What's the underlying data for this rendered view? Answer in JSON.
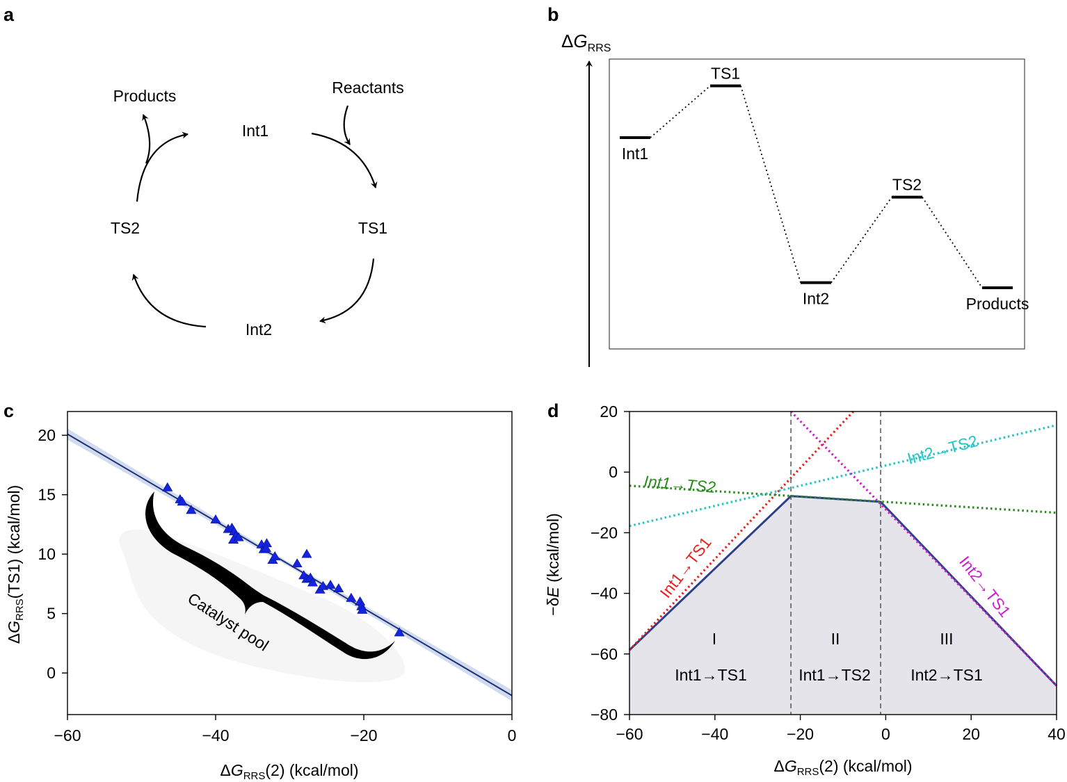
{
  "panels": {
    "a": {
      "label": "a",
      "nodes": {
        "int1": "Int1",
        "ts1": "TS1",
        "int2": "Int2",
        "ts2": "TS2",
        "reactants": "Reactants",
        "products": "Products"
      }
    },
    "b": {
      "label": "b",
      "axis": {
        "main": "ΔG",
        "italic_letter": "G",
        "sub": "RRS"
      },
      "levels": [
        {
          "name": "Int1",
          "value": 0.0
        },
        {
          "name": "TS1",
          "value": 1.0
        },
        {
          "name": "Int2",
          "value": -2.8
        },
        {
          "name": "TS2",
          "value": -1.15
        },
        {
          "name": "Products",
          "value": -2.9
        }
      ]
    },
    "c": {
      "label": "c",
      "annotation": "Catalyst pool"
    },
    "d": {
      "label": "d",
      "series_labels": {
        "int1_ts1": "Int1→TS1",
        "int1_ts2": "Int1→TS2",
        "int2_ts2": "Int2→TS2",
        "int2_ts1": "Int2→TS1"
      },
      "regions": [
        {
          "numeral": "I",
          "name": "Int1→TS1"
        },
        {
          "numeral": "II",
          "name": "Int1→TS2"
        },
        {
          "numeral": "III",
          "name": "Int2→TS1"
        }
      ]
    }
  },
  "chart_data": [
    {
      "type": "scatter",
      "panel": "c",
      "xlabel": "ΔGRRS(2) (kcal/mol)",
      "ylabel": "ΔGRRS(TS1) (kcal/mol)",
      "xlim": [
        -60,
        0
      ],
      "ylim": [
        -3.5,
        22
      ],
      "xticks": [
        -60,
        -40,
        -20,
        0
      ],
      "yticks": [
        0,
        5,
        10,
        15,
        20
      ],
      "fit_line": {
        "x": [
          -60,
          0
        ],
        "y": [
          20.1,
          -1.9
        ]
      },
      "points": [
        [
          -46.5,
          15.6
        ],
        [
          -44.8,
          14.6
        ],
        [
          -44.5,
          14.4
        ],
        [
          -43.3,
          13.7
        ],
        [
          -40.0,
          12.9
        ],
        [
          -38.3,
          12.1
        ],
        [
          -37.8,
          12.2
        ],
        [
          -37.5,
          11.9
        ],
        [
          -37.3,
          11.5
        ],
        [
          -37.6,
          11.2
        ],
        [
          -36.9,
          11.4
        ],
        [
          -33.8,
          10.8
        ],
        [
          -33.5,
          10.4
        ],
        [
          -33.1,
          10.9
        ],
        [
          -33.2,
          10.5
        ],
        [
          -32.3,
          9.5
        ],
        [
          -32.0,
          9.8
        ],
        [
          -27.7,
          10.0
        ],
        [
          -29.0,
          9.2
        ],
        [
          -28.1,
          8.2
        ],
        [
          -27.7,
          7.9
        ],
        [
          -27.2,
          8.0
        ],
        [
          -26.9,
          7.6
        ],
        [
          -25.9,
          7.0
        ],
        [
          -25.5,
          7.3
        ],
        [
          -24.5,
          7.4
        ],
        [
          -23.4,
          7.1
        ],
        [
          -21.7,
          6.3
        ],
        [
          -20.5,
          6.0
        ],
        [
          -20.3,
          5.6
        ],
        [
          -20.2,
          5.3
        ],
        [
          -15.2,
          3.4
        ]
      ]
    },
    {
      "type": "line",
      "panel": "d",
      "xlabel": "ΔGRRS(2) (kcal/mol)",
      "ylabel": "−δE (kcal/mol)",
      "xlim": [
        -60,
        40
      ],
      "ylim": [
        -80,
        20
      ],
      "xticks": [
        -60,
        -40,
        -20,
        0,
        20,
        40
      ],
      "yticks": [
        20,
        0,
        -20,
        -40,
        -60,
        -80
      ],
      "boundaries": [
        -22.2,
        -1.2
      ],
      "colors": {
        "int1_ts1": "#e8211f",
        "int1_ts2": "#2a8a1e",
        "int2_ts2": "#22c4c4",
        "int2_ts1": "#cc1fcc",
        "envelope": "#2e3f8a",
        "fill": "#e4e4ea"
      },
      "series": [
        {
          "key": "int1_ts1",
          "x": [
            -60,
            -7.6
          ],
          "y": [
            -58.7,
            20
          ]
        },
        {
          "key": "int1_ts2",
          "x": [
            -60,
            40
          ],
          "y": [
            -4.5,
            -13.4
          ]
        },
        {
          "key": "int2_ts2",
          "x": [
            -60,
            40
          ],
          "y": [
            -17.8,
            15.5
          ]
        },
        {
          "key": "int2_ts1",
          "x": [
            -22.2,
            40
          ],
          "y": [
            20,
            -70.5
          ]
        }
      ],
      "envelope": {
        "x": [
          -60,
          -22.2,
          -1.2,
          40
        ],
        "y": [
          -58.7,
          -7.9,
          -9.8,
          -70.5
        ]
      }
    }
  ]
}
